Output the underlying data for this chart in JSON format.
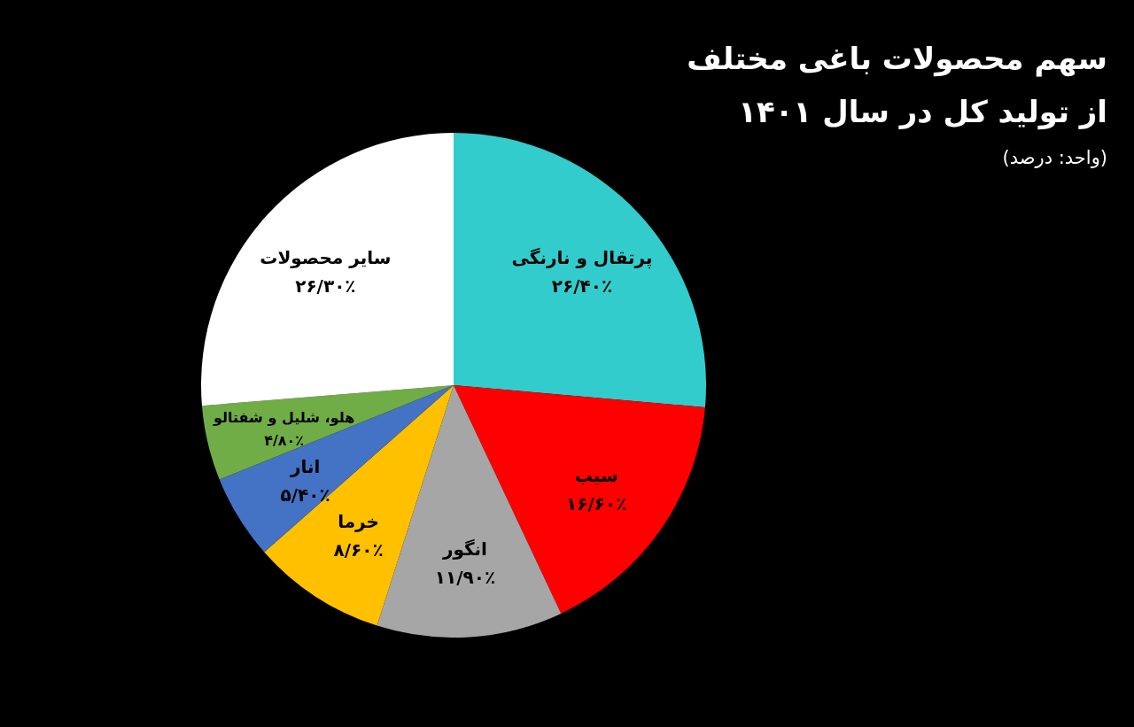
{
  "chart_data": {
    "type": "pie",
    "title": "سهم محصولات باغی مختلف\nاز تولید کل در سال ۱۴۰۱",
    "subtitle": "(واحد: درصد)",
    "categories": [
      "پرتقال و نارنگی",
      "سیب",
      "انگور",
      "خرما",
      "انار",
      "هلو، شلیل و شفتالو",
      "سایر محصولات"
    ],
    "values": [
      26.4,
      16.6,
      11.9,
      8.6,
      5.4,
      4.8,
      26.3
    ],
    "colors": [
      "#33cccc",
      "#ff0000",
      "#a6a6a6",
      "#ffc000",
      "#4472c4",
      "#70ad47",
      "#ffffff"
    ],
    "value_labels": [
      "۲۶/۴۰٪",
      "۱۶/۶۰٪",
      "۱۱/۹۰٪",
      "۸/۶۰٪",
      "۵/۴۰٪",
      "۴/۸۰٪",
      "۲۶/۳۰٪"
    ]
  }
}
